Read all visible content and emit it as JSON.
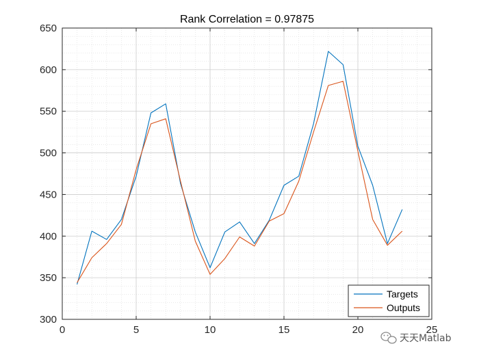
{
  "chart_data": {
    "type": "line",
    "title": "Rank Correlation = 0.97875",
    "xlabel": "",
    "ylabel": "",
    "xlim": [
      0,
      25
    ],
    "ylim": [
      300,
      650
    ],
    "xticks": [
      0,
      5,
      10,
      15,
      20,
      25
    ],
    "yticks": [
      300,
      350,
      400,
      450,
      500,
      550,
      600,
      650
    ],
    "grid": "on",
    "minor_grid": "on",
    "legend_position": "bottom-right",
    "x": [
      1,
      2,
      3,
      4,
      5,
      6,
      7,
      8,
      9,
      10,
      11,
      12,
      13,
      14,
      15,
      16,
      17,
      18,
      19,
      20,
      21,
      22,
      23
    ],
    "series": [
      {
        "name": "Targets",
        "color": "#0072BD",
        "values": [
          342,
          406,
          396,
          420,
          472,
          548,
          559,
          463,
          405,
          362,
          405,
          417,
          391,
          419,
          461,
          472,
          535,
          622,
          606,
          508,
          461,
          391,
          432
        ]
      },
      {
        "name": "Outputs",
        "color": "#D95319",
        "values": [
          344,
          374,
          391,
          414,
          480,
          535,
          541,
          466,
          394,
          354,
          373,
          399,
          388,
          418,
          427,
          466,
          525,
          581,
          586,
          502,
          420,
          389,
          406
        ]
      }
    ]
  },
  "watermark": {
    "icon": "wechat-icon",
    "text": "天天Matlab"
  }
}
